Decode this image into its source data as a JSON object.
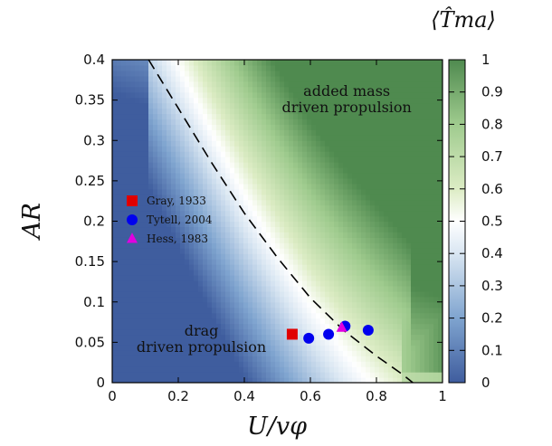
{
  "chart_data": {
    "type": "heatmap",
    "title": "",
    "xlabel": "U/vφ",
    "ylabel": "AR",
    "xlim": [
      0,
      1
    ],
    "ylim": [
      0,
      0.4
    ],
    "x_ticks": [
      "0",
      "0.2",
      "0.4",
      "0.6",
      "0.8",
      "1"
    ],
    "y_ticks": [
      "0",
      "0.05",
      "0.1",
      "0.15",
      "0.2",
      "0.25",
      "0.3",
      "0.35",
      "0.4"
    ],
    "colorbar": {
      "title": "⟨T̂ma⟩",
      "range": [
        0,
        1
      ],
      "ticks": [
        "0",
        "0.1",
        "0.2",
        "0.3",
        "0.4",
        "0.5",
        "0.6",
        "0.7",
        "0.8",
        "0.9",
        "1"
      ],
      "low_color": "#3f5d9e",
      "mid_color": "#ffffff",
      "high_color": "#4f8a4f"
    },
    "boundary_curve": {
      "style": "dashed",
      "points": [
        [
          0.11,
          0.4
        ],
        [
          0.2,
          0.34
        ],
        [
          0.3,
          0.273
        ],
        [
          0.4,
          0.21
        ],
        [
          0.5,
          0.155
        ],
        [
          0.6,
          0.105
        ],
        [
          0.7,
          0.065
        ],
        [
          0.8,
          0.033
        ],
        [
          0.88,
          0.01
        ],
        [
          0.91,
          0.0
        ]
      ]
    },
    "region_labels": [
      {
        "lines": [
          "added mass",
          "driven propulsion"
        ],
        "x": 0.71,
        "y": 0.355
      },
      {
        "lines": [
          "drag",
          "driven propulsion"
        ],
        "x": 0.27,
        "y": 0.058
      }
    ],
    "series": [
      {
        "name": "Gray, 1933",
        "marker": "square",
        "color": "#e00000",
        "points": [
          [
            0.545,
            0.06
          ]
        ]
      },
      {
        "name": "Tytell, 2004",
        "marker": "circle",
        "color": "#0000ee",
        "points": [
          [
            0.595,
            0.055
          ],
          [
            0.655,
            0.06
          ],
          [
            0.705,
            0.07
          ],
          [
            0.775,
            0.065
          ]
        ]
      },
      {
        "name": "Hess, 1983",
        "marker": "triangle",
        "color": "#e000e0",
        "points": [
          [
            0.695,
            0.068
          ]
        ]
      }
    ],
    "legend_position": "left-middle",
    "grid": false
  }
}
